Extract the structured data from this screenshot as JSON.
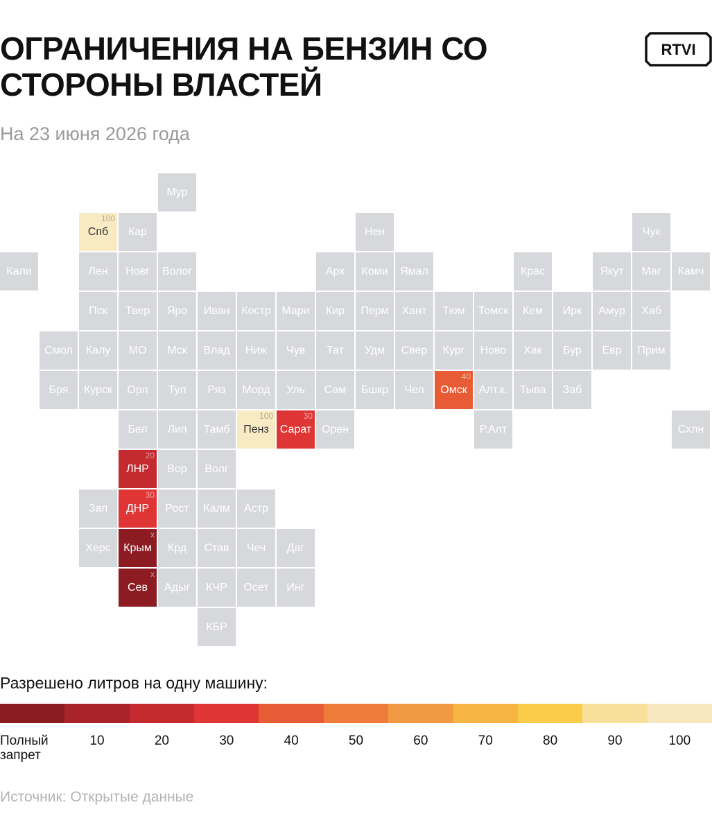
{
  "header": {
    "title": "ОГРАНИЧЕНИЯ НА БЕНЗИН СО СТОРОНЫ ВЛАСТЕЙ",
    "subtitle": "На 23 июня 2026 года",
    "logo": "RTVI"
  },
  "regions": [
    {
      "label": "Мур"
    },
    {
      "label": "Спб",
      "limit": 100,
      "color": "#f8ebc3"
    },
    {
      "label": "Кар"
    },
    {
      "label": "Нен"
    },
    {
      "label": "Чук"
    },
    {
      "label": "Кали"
    },
    {
      "label": "Лен"
    },
    {
      "label": "Новг"
    },
    {
      "label": "Волог"
    },
    {
      "label": "Арх"
    },
    {
      "label": "Коми"
    },
    {
      "label": "Ямал"
    },
    {
      "label": "Крас"
    },
    {
      "label": "Якут"
    },
    {
      "label": "Маг"
    },
    {
      "label": "Камч"
    },
    {
      "label": "Пск"
    },
    {
      "label": "Твер"
    },
    {
      "label": "Яро"
    },
    {
      "label": "Иван"
    },
    {
      "label": "Костр"
    },
    {
      "label": "Мари"
    },
    {
      "label": "Кир"
    },
    {
      "label": "Перм"
    },
    {
      "label": "Хант"
    },
    {
      "label": "Тюм"
    },
    {
      "label": "Томск"
    },
    {
      "label": "Кем"
    },
    {
      "label": "Ирк"
    },
    {
      "label": "Амур"
    },
    {
      "label": "Хаб"
    },
    {
      "label": "Смол"
    },
    {
      "label": "Калу"
    },
    {
      "label": "МО"
    },
    {
      "label": "Мск"
    },
    {
      "label": "Влад"
    },
    {
      "label": "Ниж"
    },
    {
      "label": "Чув"
    },
    {
      "label": "Тат"
    },
    {
      "label": "Удм"
    },
    {
      "label": "Свер"
    },
    {
      "label": "Кург"
    },
    {
      "label": "Ново"
    },
    {
      "label": "Хак"
    },
    {
      "label": "Бур"
    },
    {
      "label": "Евр"
    },
    {
      "label": "Прим"
    },
    {
      "label": "Бря"
    },
    {
      "label": "Курск"
    },
    {
      "label": "Орл"
    },
    {
      "label": "Тул"
    },
    {
      "label": "Ряз"
    },
    {
      "label": "Морд"
    },
    {
      "label": "Уль"
    },
    {
      "label": "Сам"
    },
    {
      "label": "Бшкр"
    },
    {
      "label": "Чел"
    },
    {
      "label": "Омск",
      "limit": 40,
      "color": "#e85c35"
    },
    {
      "label": "Алт.к."
    },
    {
      "label": "Тыва"
    },
    {
      "label": "Заб"
    },
    {
      "label": "Бел"
    },
    {
      "label": "Лип"
    },
    {
      "label": "Тамб"
    },
    {
      "label": "Пенз",
      "limit": 100,
      "color": "#f8ebc3"
    },
    {
      "label": "Сарат",
      "limit": 30,
      "color": "#df3534"
    },
    {
      "label": "Орен"
    },
    {
      "label": "Р.Алт"
    },
    {
      "label": "Схлн"
    },
    {
      "label": "ЛНР",
      "limit": 20,
      "color": "#c42a2e"
    },
    {
      "label": "Вор"
    },
    {
      "label": "Волг"
    },
    {
      "label": "Зап"
    },
    {
      "label": "ДНР",
      "limit": 30,
      "color": "#df3534"
    },
    {
      "label": "Рост"
    },
    {
      "label": "Калм"
    },
    {
      "label": "Астр"
    },
    {
      "label": "Херс"
    },
    {
      "label": "Крым",
      "limit": "x",
      "color": "#8c1c22"
    },
    {
      "label": "Крд"
    },
    {
      "label": "Став"
    },
    {
      "label": "Чеч"
    },
    {
      "label": "Даг"
    },
    {
      "label": "Сев",
      "limit": "x",
      "color": "#8c1c22"
    },
    {
      "label": "Адыг"
    },
    {
      "label": "КЧР"
    },
    {
      "label": "Осет"
    },
    {
      "label": "Инг"
    },
    {
      "label": "КБР"
    }
  ],
  "legend": {
    "title": "Разрешено литров на одну машину:",
    "steps": [
      {
        "label": "Полный запрет",
        "color": "#8c1c22"
      },
      {
        "label": "10",
        "color": "#a8242a"
      },
      {
        "label": "20",
        "color": "#c42a2e"
      },
      {
        "label": "30",
        "color": "#df3534"
      },
      {
        "label": "40",
        "color": "#e85c35"
      },
      {
        "label": "50",
        "color": "#ef7b3b"
      },
      {
        "label": "60",
        "color": "#f29a42"
      },
      {
        "label": "70",
        "color": "#f7b544"
      },
      {
        "label": "80",
        "color": "#fbcc4a"
      },
      {
        "label": "90",
        "color": "#f8e09a"
      },
      {
        "label": "100",
        "color": "#f8e8bf"
      }
    ]
  },
  "source": "Источник: Открытые данные"
}
